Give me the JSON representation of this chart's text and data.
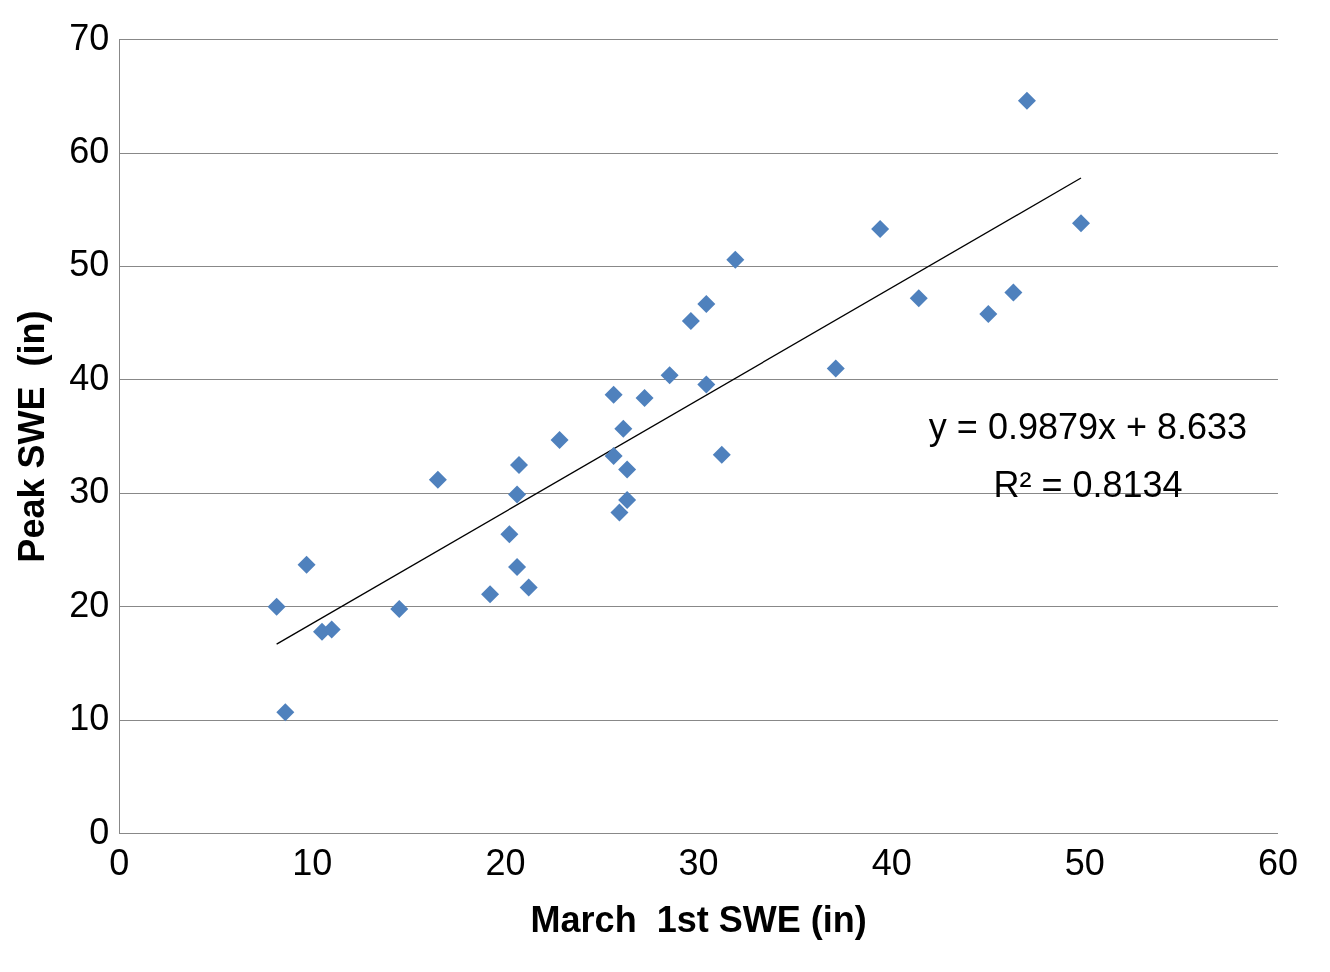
{
  "chart_data": {
    "type": "scatter",
    "xlabel": "March  1st SWE (in)",
    "ylabel": "Peak SWE  (in)",
    "xlim": [
      0,
      60
    ],
    "ylim": [
      0,
      70
    ],
    "xticks": [
      0,
      10,
      20,
      30,
      40,
      50,
      60
    ],
    "yticks": [
      0,
      10,
      20,
      30,
      40,
      50,
      60,
      70
    ],
    "grid": "y",
    "marker": "diamond",
    "annotations": [
      "y = 0.9879x + 8.633",
      "R² = 0.8134"
    ],
    "series": [
      {
        "type": "scatter",
        "color": "#4f81bd",
        "x": [
          8.15,
          8.6,
          9.7,
          10.5,
          11.0,
          14.5,
          16.5,
          19.2,
          20.2,
          20.6,
          20.6,
          20.7,
          21.2,
          22.8,
          25.6,
          25.6,
          25.9,
          26.1,
          26.3,
          26.3,
          27.2,
          28.5,
          29.6,
          30.4,
          30.4,
          31.2,
          31.9,
          37.1,
          39.4,
          41.4,
          45.0,
          46.3,
          47.0,
          49.8
        ],
        "values": [
          20.0,
          10.7,
          23.7,
          17.8,
          18.0,
          19.8,
          31.2,
          21.1,
          26.4,
          23.5,
          29.9,
          32.5,
          21.7,
          34.7,
          38.7,
          33.3,
          28.3,
          35.7,
          32.1,
          29.4,
          38.4,
          40.4,
          45.2,
          46.7,
          39.6,
          33.4,
          50.6,
          41.0,
          53.3,
          47.2,
          45.8,
          47.7,
          64.6,
          53.8
        ]
      },
      {
        "type": "line",
        "color": "#000000",
        "marker": "none",
        "x": [
          8.15,
          49.8
        ],
        "values": [
          16.7,
          57.8
        ]
      }
    ]
  }
}
